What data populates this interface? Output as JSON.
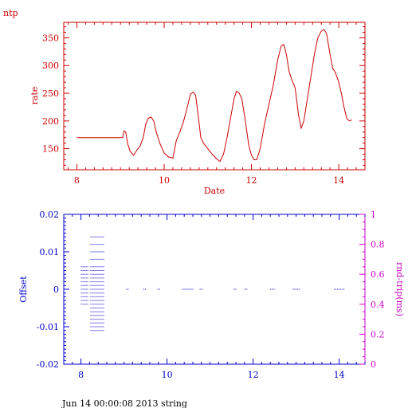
{
  "program_label": "ntp",
  "footer": "Jun 14 00:00:08 2013 string",
  "colors": {
    "rate": "#cc0000",
    "offset": "#0000cc",
    "rtt": "#cc00cc",
    "text": "#000000"
  },
  "chart_data": [
    {
      "type": "line",
      "title": "",
      "xlabel": "Date",
      "ylabel": "rate",
      "xlim": [
        7.7,
        14.6
      ],
      "ylim": [
        112,
        378
      ],
      "xticks": [
        8,
        10,
        12,
        14
      ],
      "xtick_labels": [
        "8",
        "10",
        "12",
        "14"
      ],
      "yticks": [
        150,
        200,
        250,
        300,
        350
      ],
      "ytick_labels": [
        "150",
        "200",
        "250",
        "300",
        "350"
      ],
      "grid": false,
      "series": [
        {
          "x": [
            8.0,
            9.05,
            9.08,
            9.12,
            9.16,
            9.22,
            9.3,
            9.38,
            9.45,
            9.52,
            9.58,
            9.64,
            9.7,
            9.76,
            9.82,
            9.9,
            10.0,
            10.1,
            10.2,
            10.28,
            10.36,
            10.44,
            10.52,
            10.6,
            10.66,
            10.72,
            10.78,
            10.84,
            10.9,
            11.0,
            11.1,
            11.2,
            11.28,
            11.36,
            11.44,
            11.52,
            11.6,
            11.66,
            11.72,
            11.78,
            11.86,
            11.94,
            12.0,
            12.06,
            12.12,
            12.2,
            12.3,
            12.4,
            12.5,
            12.6,
            12.68,
            12.74,
            12.8,
            12.86,
            12.92,
            13.0,
            13.08,
            13.14,
            13.2,
            13.28,
            13.36,
            13.44,
            13.52,
            13.6,
            13.66,
            13.72,
            13.8,
            13.86,
            13.92,
            14.0,
            14.06,
            14.12,
            14.18,
            14.24,
            14.3
          ],
          "y": [
            170,
            170,
            182,
            180,
            160,
            145,
            138,
            148,
            155,
            170,
            195,
            205,
            207,
            200,
            180,
            160,
            142,
            135,
            133,
            165,
            180,
            198,
            222,
            248,
            252,
            247,
            210,
            170,
            160,
            150,
            140,
            132,
            127,
            140,
            170,
            205,
            240,
            254,
            250,
            240,
            200,
            155,
            138,
            130,
            130,
            150,
            195,
            230,
            265,
            310,
            335,
            338,
            320,
            290,
            275,
            260,
            210,
            187,
            200,
            240,
            280,
            320,
            350,
            362,
            365,
            358,
            320,
            295,
            288,
            270,
            250,
            225,
            205,
            200,
            202
          ]
        }
      ]
    },
    {
      "type": "scatter",
      "title": "",
      "xlabel": "",
      "ylabel": "Offset",
      "y2label": "rnd-trip(ms)",
      "xlim": [
        7.6,
        14.6
      ],
      "ylim": [
        -0.02,
        0.02
      ],
      "y2lim": [
        0,
        1
      ],
      "xticks": [
        8,
        10,
        12,
        14
      ],
      "xtick_labels": [
        "8",
        "10",
        "12",
        "14"
      ],
      "yticks": [
        -0.02,
        -0.01,
        0,
        0.01,
        0.02
      ],
      "ytick_labels": [
        "-0.02",
        "-0.01",
        "0",
        "0.01",
        "0.02"
      ],
      "y2ticks": [
        0,
        0.2,
        0.4,
        0.6,
        0.8,
        1
      ],
      "y2tick_labels": [
        "0",
        "0.2",
        "0.4",
        "0.6",
        "0.8",
        "1"
      ],
      "grid": false,
      "clusters": [
        {
          "x_start": 8.0,
          "x_end": 8.18,
          "offsets": [
            0.006,
            0.005,
            0.004,
            0.003,
            0.002,
            0.001,
            0.0,
            -0.001,
            -0.002,
            -0.003,
            -0.004
          ]
        },
        {
          "x_start": 8.22,
          "x_end": 8.55,
          "offsets": [
            0.014,
            0.012,
            0.01,
            0.008,
            0.006,
            0.005,
            0.004,
            0.003,
            0.002,
            0.001,
            0.0,
            -0.001,
            -0.002,
            -0.003,
            -0.004,
            -0.005,
            -0.006,
            -0.007,
            -0.008,
            -0.009,
            -0.01,
            -0.011
          ]
        },
        {
          "x_start": 9.05,
          "x_end": 9.12,
          "offsets": [
            0.0
          ]
        },
        {
          "x_start": 9.45,
          "x_end": 9.52,
          "offsets": [
            0.0
          ]
        },
        {
          "x_start": 9.78,
          "x_end": 9.84,
          "offsets": [
            0.0
          ]
        },
        {
          "x_start": 10.35,
          "x_end": 10.62,
          "offsets": [
            0.0
          ]
        },
        {
          "x_start": 10.76,
          "x_end": 10.84,
          "offsets": [
            0.0
          ]
        },
        {
          "x_start": 11.55,
          "x_end": 11.62,
          "offsets": [
            0.0
          ]
        },
        {
          "x_start": 11.8,
          "x_end": 11.88,
          "offsets": [
            0.0
          ]
        },
        {
          "x_start": 12.4,
          "x_end": 12.52,
          "offsets": [
            0.0
          ]
        },
        {
          "x_start": 12.92,
          "x_end": 13.1,
          "offsets": [
            0.0
          ]
        },
        {
          "x_start": 13.88,
          "x_end": 14.12,
          "offsets": [
            0.0
          ]
        }
      ]
    }
  ]
}
